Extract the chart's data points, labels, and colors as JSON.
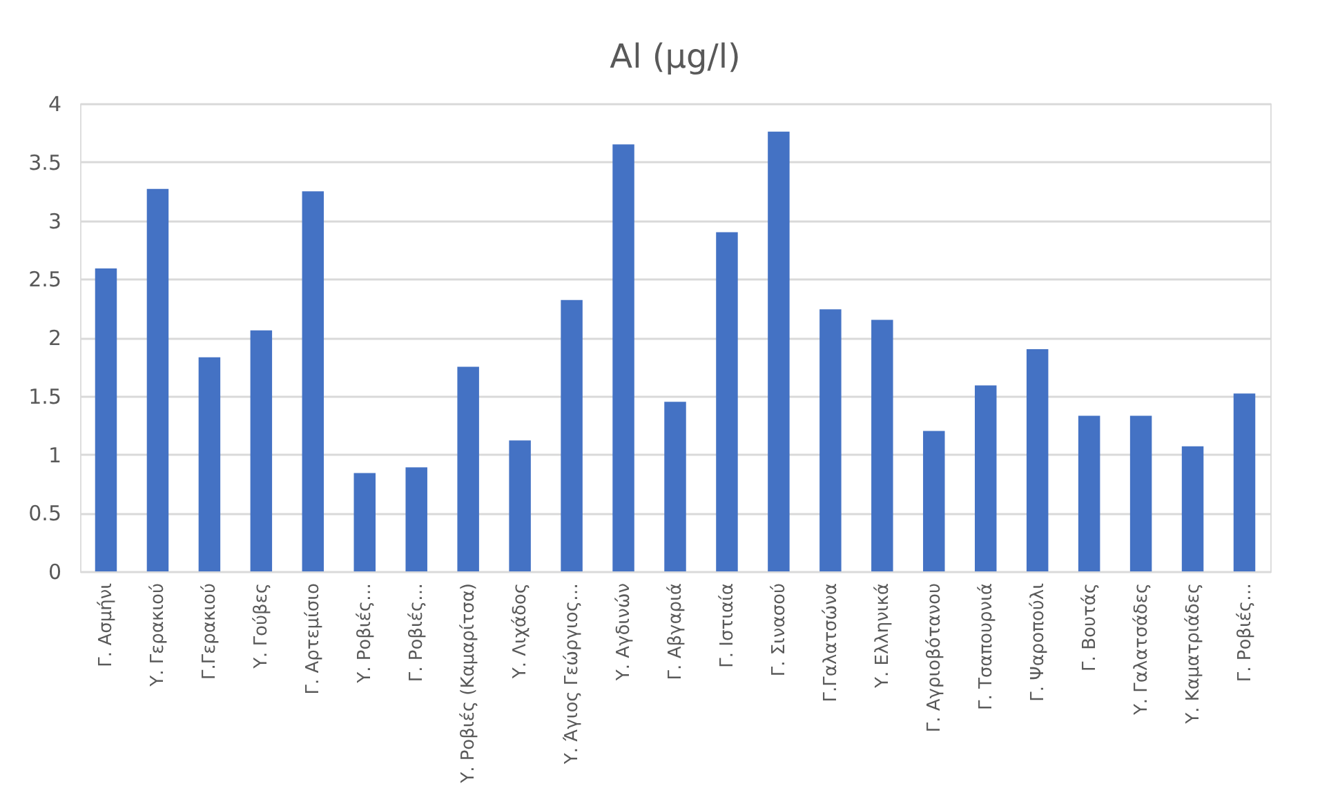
{
  "chart_data": {
    "type": "bar",
    "title": "Al (μg/l)",
    "categories": [
      "Γ. Ασμήνι",
      "Υ. Γερακιού",
      "Γ.Γερακιού",
      "Υ. Γούβες",
      "Γ. Αρτεμίσιο",
      "Υ. Ροβιές…",
      "Γ. Ροβιές…",
      "Υ. Ροβιές (Καμαρίτσα)",
      "Υ. Λιχάδος",
      "Υ. Άγιος Γεώργιος…",
      "Υ. Αγδινών",
      "Γ. Αβγαριά",
      "Γ. Ιστιαία",
      "Γ. Σινασού",
      "Γ.Γαλατσώνα",
      "Υ. Ελληνικά",
      "Γ. Αγριοβότανου",
      "Γ. Τσαπουρνιά",
      "Γ. Ψαροπούλι",
      "Γ. Βουτάς",
      "Υ. Γαλατσάδες",
      "Υ. Καματριάδες",
      "Γ. Ροβιές…"
    ],
    "values": [
      2.59,
      3.27,
      1.83,
      2.06,
      3.25,
      0.84,
      0.89,
      1.75,
      1.12,
      2.32,
      3.65,
      1.45,
      2.9,
      3.76,
      2.24,
      2.15,
      1.2,
      1.59,
      1.9,
      1.33,
      1.33,
      1.07,
      1.52
    ],
    "color": "#4472c4",
    "ylim": [
      0,
      4
    ],
    "yticks": [
      0,
      0.5,
      1,
      1.5,
      2,
      2.5,
      3,
      3.5,
      4
    ],
    "grid": "y"
  }
}
